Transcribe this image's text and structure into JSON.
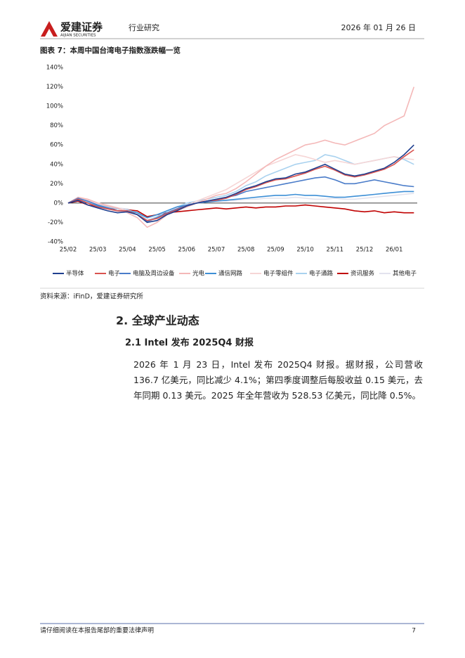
{
  "header": {
    "brand": "爱建证券",
    "brand_en": "AIJIAN SECURITIES",
    "report_type": "行业研究",
    "date": "2026 年 01 月 26 日"
  },
  "figure": {
    "title": "图表 7：本周中国台湾电子指数涨跌幅一览",
    "source": "资料来源：iFinD，爱建证券研究所"
  },
  "chart_data": {
    "type": "line",
    "categories": [
      "25/02",
      null,
      null,
      "25/03",
      null,
      null,
      "25/04",
      null,
      null,
      "25/05",
      null,
      null,
      "25/06",
      null,
      null,
      "25/07",
      null,
      null,
      "25/08",
      null,
      null,
      "25/09",
      null,
      null,
      "25/10",
      null,
      null,
      "25/11",
      null,
      null,
      "25/12",
      null,
      null,
      "26/01",
      null,
      null
    ],
    "ylim": [
      -40,
      140
    ],
    "yticks": [
      {
        "value": -40,
        "label": "-40%"
      },
      {
        "value": -20,
        "label": "-20%"
      },
      {
        "value": 0,
        "label": "0%"
      },
      {
        "value": 20,
        "label": "20%"
      },
      {
        "value": 40,
        "label": "40%"
      },
      {
        "value": 60,
        "label": "60%"
      },
      {
        "value": 80,
        "label": "80%"
      },
      {
        "value": 100,
        "label": "100%"
      },
      {
        "value": 120,
        "label": "120%"
      },
      {
        "value": 140,
        "label": "140%"
      }
    ],
    "legend": "bottom",
    "series": [
      {
        "name": "半导体",
        "color": "#1f3f8f",
        "values": [
          0,
          3,
          -2,
          -5,
          -8,
          -10,
          -9,
          -12,
          -20,
          -18,
          -12,
          -8,
          -3,
          0,
          2,
          4,
          6,
          10,
          15,
          18,
          22,
          25,
          26,
          30,
          32,
          36,
          40,
          35,
          30,
          28,
          30,
          33,
          36,
          42,
          50,
          60
        ]
      },
      {
        "name": "电子",
        "color": "#d9534f",
        "values": [
          0,
          4,
          0,
          -4,
          -6,
          -8,
          -8,
          -12,
          -18,
          -16,
          -11,
          -7,
          -3,
          0,
          2,
          3,
          5,
          9,
          14,
          17,
          21,
          24,
          25,
          28,
          31,
          35,
          38,
          34,
          29,
          27,
          29,
          32,
          35,
          40,
          48,
          55
        ]
      },
      {
        "name": "电脑及周边设备",
        "color": "#4a7cc9",
        "values": [
          0,
          5,
          2,
          -2,
          -5,
          -8,
          -8,
          -12,
          -19,
          -15,
          -10,
          -6,
          -2,
          0,
          2,
          4,
          6,
          8,
          12,
          14,
          16,
          18,
          20,
          22,
          24,
          26,
          27,
          24,
          20,
          20,
          22,
          24,
          22,
          20,
          18,
          17
        ]
      },
      {
        "name": "光电",
        "color": "#f4b8b8",
        "values": [
          0,
          6,
          4,
          0,
          -3,
          -5,
          -10,
          -15,
          -25,
          -20,
          -12,
          -8,
          -4,
          0,
          4,
          8,
          10,
          15,
          22,
          30,
          38,
          45,
          50,
          55,
          60,
          62,
          65,
          62,
          60,
          64,
          68,
          72,
          80,
          85,
          90,
          120
        ]
      },
      {
        "name": "通信网路",
        "color": "#3d8fd6",
        "values": [
          0,
          3,
          0,
          -3,
          -5,
          -8,
          -8,
          -10,
          -15,
          -12,
          -8,
          -4,
          -2,
          0,
          1,
          2,
          3,
          4,
          5,
          6,
          7,
          8,
          8,
          9,
          8,
          8,
          7,
          6,
          6,
          7,
          8,
          9,
          10,
          11,
          12,
          12
        ]
      },
      {
        "name": "电子零组件",
        "color": "#f6d6d6",
        "values": [
          0,
          5,
          3,
          0,
          -2,
          -5,
          -8,
          -12,
          -20,
          -15,
          -10,
          -5,
          -2,
          2,
          6,
          10,
          14,
          20,
          26,
          32,
          38,
          42,
          46,
          50,
          48,
          45,
          42,
          44,
          42,
          40,
          42,
          44,
          46,
          48,
          46,
          45
        ]
      },
      {
        "name": "电子通路",
        "color": "#a9d2ef",
        "values": [
          0,
          4,
          1,
          -2,
          -4,
          -6,
          -7,
          -10,
          -18,
          -14,
          -8,
          -4,
          0,
          2,
          4,
          6,
          8,
          12,
          18,
          22,
          28,
          32,
          36,
          40,
          42,
          44,
          50,
          48,
          44,
          40,
          42,
          44,
          46,
          48,
          45,
          40
        ]
      },
      {
        "name": "资讯服务",
        "color": "#c00000",
        "values": [
          0,
          2,
          -2,
          -4,
          -5,
          -6,
          -7,
          -8,
          -14,
          -12,
          -10,
          -9,
          -8,
          -7,
          -6,
          -5,
          -6,
          -5,
          -4,
          -5,
          -4,
          -4,
          -3,
          -3,
          -2,
          -3,
          -4,
          -5,
          -6,
          -8,
          -9,
          -8,
          -10,
          -9,
          -10,
          -10
        ]
      },
      {
        "name": "其他电子",
        "color": "#e3e3ee",
        "values": [
          0,
          4,
          2,
          -1,
          -3,
          -5,
          -6,
          -9,
          -16,
          -12,
          -8,
          -5,
          -2,
          0,
          1,
          2,
          2,
          3,
          4,
          4,
          5,
          5,
          5,
          6,
          5,
          4,
          4,
          5,
          4,
          4,
          5,
          6,
          7,
          8,
          9,
          10
        ]
      }
    ]
  },
  "section": {
    "heading": "2. 全球产业动态",
    "subheading": "2.1 Intel 发布 2025Q4 财报",
    "paragraph": "2026 年 1 月 23 日，Intel 发布 2025Q4 财报。据财报，公司营收 136.7 亿美元，同比减少 4.1%；第四季度调整后每股收益 0.15 美元，去年同期 0.13 美元。2025 年全年营收为 528.53 亿美元，同比降 0.5%。"
  },
  "footer": {
    "disclaimer": "请仔细阅读在本报告尾部的重要法律声明",
    "page": "7"
  }
}
